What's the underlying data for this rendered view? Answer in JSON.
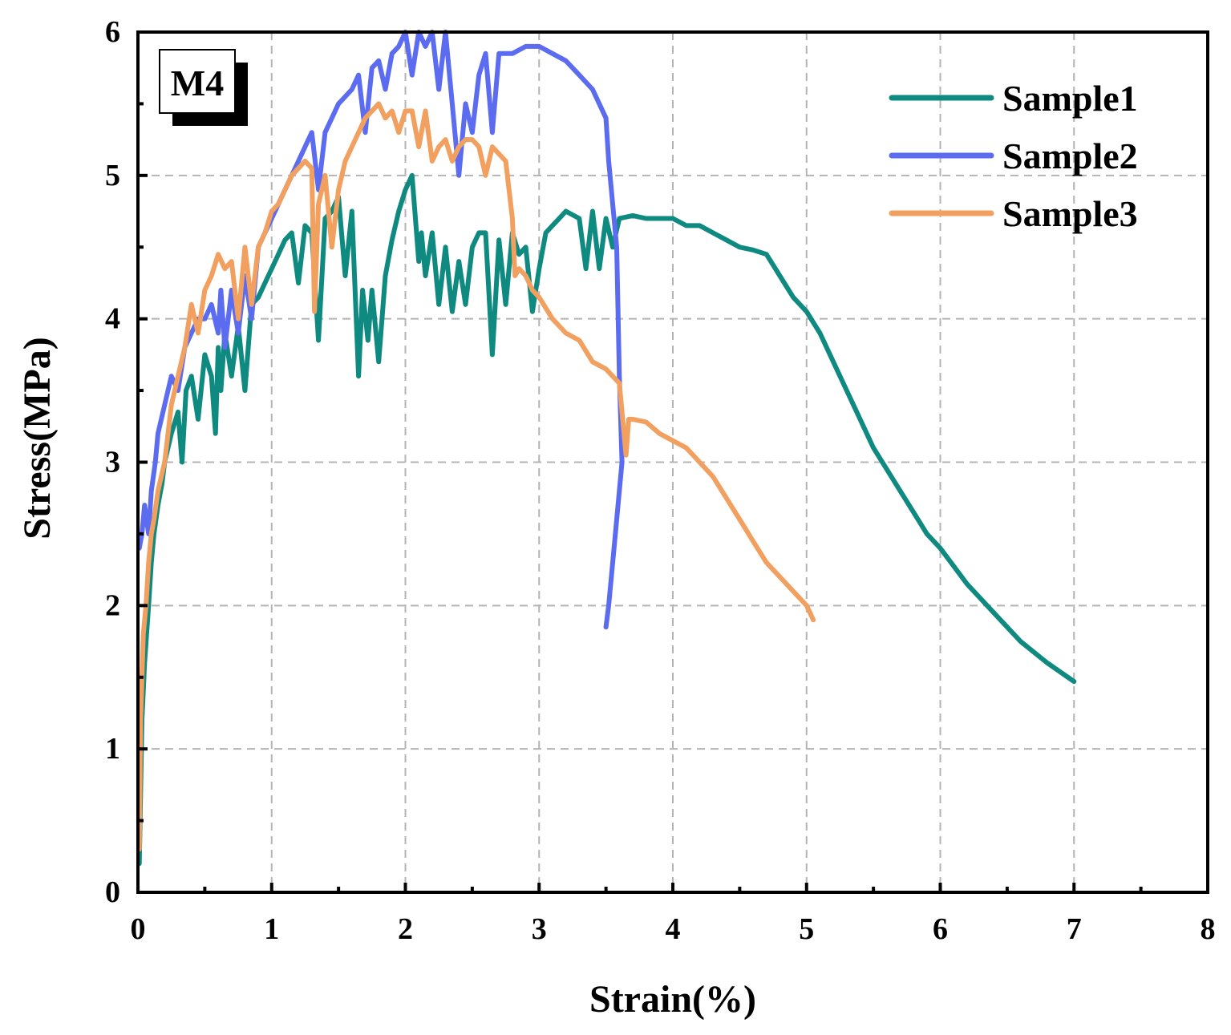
{
  "chart_data": {
    "type": "line",
    "title": "",
    "xlabel": "Strain(%)",
    "ylabel": "Stress(MPa)",
    "xlim": [
      0,
      8
    ],
    "ylim": [
      0,
      6
    ],
    "xticks": [
      0,
      1,
      2,
      3,
      4,
      5,
      6,
      7,
      8
    ],
    "yticks": [
      0,
      1,
      2,
      3,
      4,
      5,
      6
    ],
    "xtick_labels": [
      "0",
      "1",
      "2",
      "3",
      "4",
      "5",
      "6",
      "7",
      "8"
    ],
    "ytick_labels": [
      "0",
      "1",
      "2",
      "3",
      "4",
      "5",
      "6"
    ],
    "grid": true,
    "legend_position": "top-right",
    "panel_label": "M4",
    "series": [
      {
        "name": "Sample1",
        "color": "#0f8a80",
        "x": [
          0.01,
          0.03,
          0.05,
          0.08,
          0.1,
          0.12,
          0.15,
          0.18,
          0.2,
          0.25,
          0.3,
          0.33,
          0.36,
          0.4,
          0.45,
          0.5,
          0.55,
          0.58,
          0.6,
          0.62,
          0.65,
          0.7,
          0.75,
          0.8,
          0.85,
          0.9,
          0.95,
          1.0,
          1.05,
          1.1,
          1.15,
          1.2,
          1.25,
          1.3,
          1.35,
          1.4,
          1.45,
          1.5,
          1.55,
          1.6,
          1.65,
          1.68,
          1.72,
          1.75,
          1.8,
          1.85,
          1.9,
          1.95,
          2.0,
          2.05,
          2.1,
          2.12,
          2.15,
          2.2,
          2.25,
          2.3,
          2.35,
          2.4,
          2.45,
          2.5,
          2.55,
          2.6,
          2.65,
          2.7,
          2.75,
          2.8,
          2.85,
          2.9,
          2.95,
          3.0,
          3.05,
          3.1,
          3.15,
          3.2,
          3.3,
          3.35,
          3.4,
          3.45,
          3.5,
          3.55,
          3.6,
          3.7,
          3.8,
          3.9,
          4.0,
          4.1,
          4.2,
          4.3,
          4.4,
          4.5,
          4.6,
          4.7,
          4.8,
          4.9,
          5.0,
          5.1,
          5.2,
          5.3,
          5.4,
          5.5,
          5.6,
          5.7,
          5.8,
          5.9,
          6.0,
          6.2,
          6.4,
          6.6,
          6.8,
          7.0
        ],
        "y": [
          0.2,
          1.2,
          1.6,
          2.0,
          2.3,
          2.5,
          2.7,
          2.85,
          3.0,
          3.2,
          3.35,
          3.0,
          3.5,
          3.6,
          3.3,
          3.75,
          3.6,
          3.2,
          3.8,
          3.5,
          3.9,
          3.6,
          3.95,
          3.5,
          4.1,
          4.15,
          4.25,
          4.35,
          4.45,
          4.55,
          4.6,
          4.25,
          4.65,
          4.6,
          3.85,
          4.7,
          4.75,
          4.85,
          4.3,
          4.75,
          3.6,
          4.2,
          3.85,
          4.2,
          3.7,
          4.3,
          4.55,
          4.75,
          4.9,
          5.0,
          4.4,
          4.6,
          4.3,
          4.6,
          4.1,
          4.5,
          4.05,
          4.4,
          4.1,
          4.5,
          4.6,
          4.6,
          3.75,
          4.55,
          4.1,
          4.6,
          4.45,
          4.5,
          4.05,
          4.35,
          4.6,
          4.65,
          4.7,
          4.75,
          4.7,
          4.35,
          4.75,
          4.35,
          4.7,
          4.5,
          4.7,
          4.72,
          4.7,
          4.7,
          4.7,
          4.65,
          4.65,
          4.6,
          4.55,
          4.5,
          4.48,
          4.45,
          4.3,
          4.15,
          4.05,
          3.9,
          3.7,
          3.5,
          3.3,
          3.1,
          2.95,
          2.8,
          2.65,
          2.5,
          2.4,
          2.15,
          1.95,
          1.75,
          1.6,
          1.47
        ]
      },
      {
        "name": "Sample2",
        "color": "#5b6cf0",
        "x": [
          0.01,
          0.03,
          0.05,
          0.08,
          0.1,
          0.13,
          0.15,
          0.2,
          0.25,
          0.3,
          0.35,
          0.4,
          0.45,
          0.5,
          0.55,
          0.6,
          0.62,
          0.65,
          0.7,
          0.75,
          0.8,
          0.85,
          0.9,
          0.95,
          1.0,
          1.05,
          1.1,
          1.15,
          1.2,
          1.25,
          1.3,
          1.35,
          1.4,
          1.45,
          1.5,
          1.55,
          1.6,
          1.65,
          1.7,
          1.75,
          1.8,
          1.85,
          1.9,
          1.95,
          2.0,
          2.05,
          2.1,
          2.15,
          2.2,
          2.25,
          2.3,
          2.35,
          2.4,
          2.45,
          2.5,
          2.55,
          2.6,
          2.65,
          2.7,
          2.8,
          2.9,
          3.0,
          3.1,
          3.2,
          3.3,
          3.4,
          3.5,
          3.52,
          3.55,
          3.58,
          3.6,
          3.62,
          3.58,
          3.55,
          3.52,
          3.5
        ],
        "y": [
          2.4,
          2.5,
          2.7,
          2.5,
          2.8,
          3.0,
          3.2,
          3.4,
          3.6,
          3.5,
          3.8,
          3.9,
          4.0,
          4.0,
          4.1,
          3.9,
          4.2,
          3.8,
          4.2,
          3.9,
          4.3,
          4.0,
          4.5,
          4.6,
          4.7,
          4.8,
          4.9,
          5.0,
          5.1,
          5.2,
          5.3,
          4.9,
          5.3,
          5.4,
          5.5,
          5.55,
          5.6,
          5.7,
          5.3,
          5.75,
          5.8,
          5.6,
          5.85,
          5.9,
          6.0,
          5.7,
          6.0,
          5.9,
          6.0,
          5.6,
          6.0,
          5.5,
          5.0,
          5.5,
          5.3,
          5.7,
          5.85,
          5.3,
          5.85,
          5.85,
          5.9,
          5.9,
          5.85,
          5.8,
          5.7,
          5.6,
          5.4,
          5.1,
          4.8,
          4.5,
          3.6,
          3.0,
          2.6,
          2.3,
          2.0,
          1.85
        ]
      },
      {
        "name": "Sample3",
        "color": "#f2a060",
        "x": [
          0.01,
          0.02,
          0.04,
          0.06,
          0.08,
          0.1,
          0.12,
          0.15,
          0.2,
          0.25,
          0.3,
          0.35,
          0.4,
          0.45,
          0.5,
          0.55,
          0.6,
          0.65,
          0.7,
          0.75,
          0.8,
          0.85,
          0.9,
          0.95,
          1.0,
          1.05,
          1.1,
          1.15,
          1.2,
          1.25,
          1.3,
          1.32,
          1.35,
          1.4,
          1.45,
          1.5,
          1.55,
          1.6,
          1.65,
          1.7,
          1.75,
          1.8,
          1.85,
          1.9,
          1.95,
          2.0,
          2.05,
          2.1,
          2.15,
          2.2,
          2.25,
          2.3,
          2.35,
          2.4,
          2.45,
          2.5,
          2.55,
          2.6,
          2.65,
          2.7,
          2.75,
          2.8,
          2.82,
          2.85,
          2.9,
          2.95,
          3.0,
          3.1,
          3.2,
          3.3,
          3.4,
          3.5,
          3.6,
          3.65,
          3.67,
          3.7,
          3.8,
          3.9,
          4.0,
          4.1,
          4.2,
          4.3,
          4.4,
          4.5,
          4.6,
          4.7,
          4.8,
          4.9,
          5.0,
          5.05
        ],
        "y": [
          0.3,
          1.2,
          1.8,
          2.0,
          2.3,
          2.5,
          2.6,
          2.8,
          3.0,
          3.4,
          3.6,
          3.8,
          4.1,
          3.9,
          4.2,
          4.3,
          4.45,
          4.35,
          4.4,
          4.0,
          4.5,
          4.1,
          4.5,
          4.6,
          4.75,
          4.8,
          4.9,
          5.0,
          5.05,
          5.1,
          5.05,
          4.05,
          4.8,
          5.0,
          4.5,
          4.9,
          5.1,
          5.2,
          5.3,
          5.4,
          5.45,
          5.5,
          5.4,
          5.45,
          5.3,
          5.45,
          5.45,
          5.2,
          5.45,
          5.1,
          5.2,
          5.25,
          5.1,
          5.2,
          5.25,
          5.25,
          5.2,
          5.0,
          5.2,
          5.15,
          5.1,
          4.7,
          4.3,
          4.35,
          4.3,
          4.2,
          4.15,
          4.0,
          3.9,
          3.85,
          3.7,
          3.65,
          3.55,
          3.05,
          3.3,
          3.3,
          3.28,
          3.2,
          3.15,
          3.1,
          3.0,
          2.9,
          2.75,
          2.6,
          2.45,
          2.3,
          2.2,
          2.1,
          2.0,
          1.9
        ]
      }
    ]
  }
}
